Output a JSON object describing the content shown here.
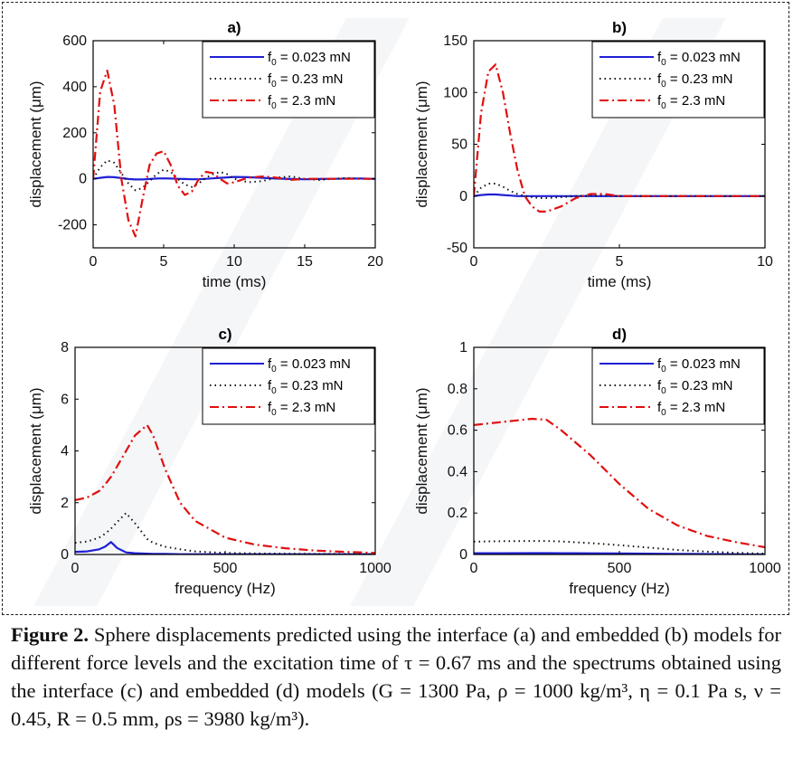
{
  "figure": {
    "panels": [
      {
        "id": "a",
        "title": "a)",
        "xlabel": "time (ms)",
        "ylabel": "displacement (μm)",
        "xlim": [
          0,
          20
        ],
        "ylim": [
          -300,
          600
        ],
        "xticks": [
          0,
          5,
          10,
          15,
          20
        ],
        "yticks": [
          -200,
          0,
          200,
          400,
          600
        ],
        "legend": [
          "f0 = 0.023 mN",
          "f0 = 0.23 mN",
          "f0 = 2.3 mN"
        ]
      },
      {
        "id": "b",
        "title": "b)",
        "xlabel": "time (ms)",
        "ylabel": "displacement (μm)",
        "xlim": [
          0,
          10
        ],
        "ylim": [
          -50,
          150
        ],
        "xticks": [
          0,
          5,
          10
        ],
        "yticks": [
          -50,
          0,
          50,
          100,
          150
        ],
        "legend": [
          "f0 = 0.023 mN",
          "f0 = 0.23 mN",
          "f0 = 2.3 mN"
        ]
      },
      {
        "id": "c",
        "title": "c)",
        "xlabel": "frequency (Hz)",
        "ylabel": "displacement (μm)",
        "xlim": [
          0,
          1000
        ],
        "ylim": [
          0,
          8
        ],
        "xticks": [
          0,
          500,
          1000
        ],
        "yticks": [
          0,
          2,
          4,
          6,
          8
        ],
        "legend": [
          "f0 = 0.023 mN",
          "f0 = 0.23 mN",
          "f0 = 2.3 mN"
        ]
      },
      {
        "id": "d",
        "title": "d)",
        "xlabel": "frequency (Hz)",
        "ylabel": "displacement (μm)",
        "xlim": [
          0,
          1000
        ],
        "ylim": [
          0,
          1
        ],
        "xticks": [
          0,
          500,
          1000
        ],
        "yticks": [
          0,
          0.2,
          0.4,
          0.6,
          0.8,
          1
        ],
        "legend": [
          "f0 = 0.023 mN",
          "f0 = 0.23 mN",
          "f0 = 2.3 mN"
        ]
      }
    ],
    "series_styles": [
      {
        "color": "#1f1fd6",
        "dash": "",
        "label": "f0 = 0.023 mN"
      },
      {
        "color": "#111111",
        "dash": "1.5,4",
        "label": "f0 = 0.23 mN"
      },
      {
        "color": "#e01010",
        "dash": "10,4,2,4",
        "label": "f0 = 2.3 mN"
      }
    ]
  },
  "chart_data": [
    {
      "type": "line",
      "title": "a)",
      "xlabel": "time (ms)",
      "ylabel": "displacement (μm)",
      "xlim": [
        0,
        20
      ],
      "ylim": [
        -300,
        600
      ],
      "legend_position": "top-right",
      "x": [
        0,
        0.5,
        1.0,
        1.5,
        2.0,
        2.5,
        3.0,
        3.5,
        4.0,
        4.5,
        5.0,
        5.5,
        6.0,
        6.5,
        7.0,
        7.5,
        8.0,
        8.5,
        9.0,
        9.5,
        10,
        11,
        12,
        13,
        14,
        15,
        16,
        17,
        18,
        19,
        20
      ],
      "series": [
        {
          "name": "f0 = 0.023 mN",
          "values": [
            0,
            4,
            8,
            7,
            3,
            -1,
            -3,
            -3,
            -1,
            1,
            2,
            1,
            0,
            -1,
            -2,
            -2,
            0,
            2,
            4,
            6,
            8,
            7,
            4,
            1,
            -1,
            -2,
            -1,
            0,
            1,
            1,
            0
          ]
        },
        {
          "name": "f0 = 0.23 mN",
          "values": [
            0,
            50,
            80,
            70,
            25,
            -20,
            -50,
            -40,
            -10,
            20,
            40,
            30,
            0,
            -25,
            -35,
            -20,
            5,
            20,
            30,
            20,
            0,
            -15,
            -10,
            5,
            10,
            0,
            -5,
            0,
            3,
            0,
            0
          ]
        },
        {
          "name": "f0 = 2.3 mN",
          "values": [
            0,
            380,
            470,
            320,
            0,
            -180,
            -250,
            -90,
            60,
            110,
            120,
            60,
            -30,
            -70,
            -55,
            0,
            30,
            25,
            0,
            -20,
            -15,
            5,
            10,
            5,
            -5,
            0,
            0,
            0,
            0,
            0,
            0
          ]
        }
      ]
    },
    {
      "type": "line",
      "title": "b)",
      "xlabel": "time (ms)",
      "ylabel": "displacement (μm)",
      "xlim": [
        0,
        10
      ],
      "ylim": [
        -50,
        150
      ],
      "legend_position": "top-right",
      "x": [
        0,
        0.25,
        0.5,
        0.75,
        1.0,
        1.25,
        1.5,
        1.75,
        2.0,
        2.25,
        2.5,
        3.0,
        3.5,
        4.0,
        4.5,
        5.0,
        6.0,
        7.0,
        8.0,
        9.0,
        10
      ],
      "series": [
        {
          "name": "f0 = 0.023 mN",
          "values": [
            0,
            1,
            1.5,
            1.5,
            1,
            0.5,
            0,
            0,
            0,
            0,
            0,
            0,
            0,
            0,
            0,
            0,
            0,
            0,
            0,
            0,
            0
          ]
        },
        {
          "name": "f0 = 0.23 mN",
          "values": [
            0,
            8,
            12,
            12,
            9,
            5,
            2,
            0,
            -1,
            -2,
            -2,
            -1,
            0,
            0.5,
            0.5,
            0,
            0,
            0,
            0,
            0,
            0
          ]
        },
        {
          "name": "f0 = 2.3 mN",
          "values": [
            0,
            80,
            120,
            127,
            100,
            60,
            25,
            0,
            -10,
            -15,
            -15,
            -10,
            -2,
            2,
            2,
            0,
            0,
            0,
            0,
            0,
            0
          ]
        }
      ]
    },
    {
      "type": "line",
      "title": "c)",
      "xlabel": "frequency (Hz)",
      "ylabel": "displacement (μm)",
      "xlim": [
        0,
        1000
      ],
      "ylim": [
        0,
        8
      ],
      "legend_position": "top-right",
      "x": [
        0,
        40,
        80,
        100,
        120,
        140,
        170,
        200,
        240,
        260,
        300,
        350,
        400,
        500,
        600,
        700,
        800,
        900,
        1000
      ],
      "series": [
        {
          "name": "f0 = 0.023 mN",
          "values": [
            0.1,
            0.12,
            0.2,
            0.3,
            0.48,
            0.25,
            0.08,
            0.05,
            0.03,
            0.02,
            0.02,
            0.01,
            0.01,
            0.01,
            0.01,
            0.01,
            0.01,
            0.01,
            0.01
          ]
        },
        {
          "name": "f0 = 0.23 mN",
          "values": [
            0.45,
            0.5,
            0.65,
            0.8,
            1.0,
            1.25,
            1.6,
            1.2,
            0.6,
            0.45,
            0.3,
            0.2,
            0.12,
            0.06,
            0.04,
            0.03,
            0.02,
            0.02,
            0.01
          ]
        },
        {
          "name": "f0 = 2.3 mN",
          "values": [
            2.1,
            2.2,
            2.45,
            2.7,
            3.0,
            3.4,
            4.0,
            4.6,
            5.0,
            4.6,
            3.3,
            2.0,
            1.3,
            0.65,
            0.38,
            0.24,
            0.15,
            0.1,
            0.06
          ]
        }
      ]
    },
    {
      "type": "line",
      "title": "d)",
      "xlabel": "frequency (Hz)",
      "ylabel": "displacement (μm)",
      "xlim": [
        0,
        1000
      ],
      "ylim": [
        0,
        1
      ],
      "legend_position": "top-right",
      "x": [
        0,
        100,
        200,
        250,
        300,
        400,
        500,
        600,
        700,
        800,
        900,
        1000
      ],
      "series": [
        {
          "name": "f0 = 0.023 mN",
          "values": [
            0.006,
            0.006,
            0.0065,
            0.0065,
            0.006,
            0.0055,
            0.005,
            0.004,
            0.003,
            0.002,
            0.0015,
            0.001
          ]
        },
        {
          "name": "f0 = 0.23 mN",
          "values": [
            0.062,
            0.064,
            0.065,
            0.065,
            0.063,
            0.055,
            0.045,
            0.033,
            0.022,
            0.014,
            0.008,
            0.004
          ]
        },
        {
          "name": "f0 = 2.3 mN",
          "values": [
            0.625,
            0.64,
            0.655,
            0.65,
            0.6,
            0.48,
            0.34,
            0.22,
            0.14,
            0.09,
            0.06,
            0.035
          ]
        }
      ]
    }
  ],
  "caption": {
    "label": "Figure 2.",
    "text": "Sphere displacements predicted using the interface (a) and embedded (b) models for different force levels and the excitation time of τ = 0.67 ms and the spectrums obtained using the interface (c) and embedded (d) models (G = 1300 Pa, ρ = 1000 kg/m³, η = 0.1 Pa s, ν = 0.45, R = 0.5 mm, ρs = 3980 kg/m³)."
  }
}
